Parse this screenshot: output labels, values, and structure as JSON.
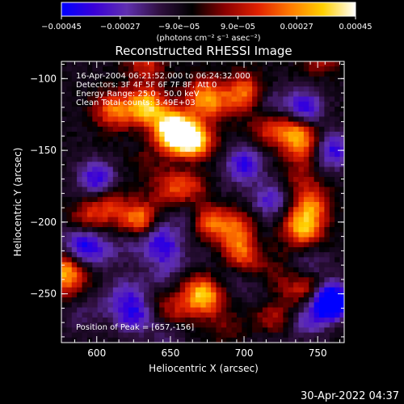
{
  "chart_data": {
    "type": "heatmap",
    "title": "Reconstructed RHESSI Image",
    "xlabel": "Heliocentric X (arcsec)",
    "ylabel": "Heliocentric Y (arcsec)",
    "xlim": [
      576,
      768
    ],
    "ylim": [
      -284,
      -88
    ],
    "x_ticks": [
      600,
      650,
      700,
      750
    ],
    "y_ticks": [
      -100,
      -150,
      -200,
      -250
    ],
    "x_tick_labels": [
      "600",
      "650",
      "700",
      "750"
    ],
    "y_tick_labels": [
      "−100",
      "−150",
      "−200",
      "−250"
    ],
    "grid": false,
    "colorbar": {
      "range": [
        -0.00045,
        0.00045
      ],
      "ticks": [
        -0.00045,
        -0.00027,
        -9e-05,
        9e-05,
        0.00027,
        0.00045
      ],
      "tick_labels": [
        "−0.00045",
        "−0.00027",
        "−9.0e−05",
        "9.0e−05",
        "0.00027",
        "0.00045"
      ],
      "units_label": "(photons cm⁻² s⁻¹ asec⁻²)",
      "colormap": [
        "#0000ff",
        "#3a00d8",
        "#6030b0",
        "#301040",
        "#000000",
        "#8a0000",
        "#e02000",
        "#ff7a00",
        "#ffd000",
        "#ffffff"
      ]
    },
    "annotations": {
      "time_range": "16-Apr-2004 06:21:52.000 to 06:24:32.000",
      "detectors": "Detectors: 3F 4F 5F 6F 7F 8F, Att 0",
      "energy": "Energy Range: 25.0 - 50.0 keV",
      "clean": "Clean     Total counts: 3.49E+03",
      "peak": "Position of Peak = [657,-156]"
    },
    "peak_position": [
      657,
      -156
    ],
    "hot_spots": [
      {
        "x": 666,
        "y": -145,
        "level": 0.00045
      },
      {
        "x": 652,
        "y": -135,
        "level": 0.0004
      },
      {
        "x": 632,
        "y": -120,
        "level": 0.00034
      },
      {
        "x": 611,
        "y": -122,
        "level": 0.0003
      },
      {
        "x": 700,
        "y": -110,
        "level": 0.00032
      },
      {
        "x": 717,
        "y": -133,
        "level": 0.00025
      },
      {
        "x": 740,
        "y": -204,
        "level": 0.0004
      },
      {
        "x": 746,
        "y": -188,
        "level": 0.00028
      },
      {
        "x": 678,
        "y": -200,
        "level": 0.00032
      },
      {
        "x": 663,
        "y": -172,
        "level": 0.00027
      },
      {
        "x": 580,
        "y": -232,
        "level": 0.00034
      },
      {
        "x": 628,
        "y": -200,
        "level": 0.00027
      },
      {
        "x": 670,
        "y": -250,
        "level": 0.00024
      },
      {
        "x": 720,
        "y": -268,
        "level": 0.00028
      },
      {
        "x": 700,
        "y": -225,
        "level": 0.0002
      }
    ],
    "cold_spots": [
      {
        "x": 700,
        "y": -160,
        "level": -0.0003
      },
      {
        "x": 740,
        "y": -122,
        "level": -0.00034
      },
      {
        "x": 760,
        "y": -150,
        "level": -0.0003
      },
      {
        "x": 600,
        "y": -170,
        "level": -0.0003
      },
      {
        "x": 592,
        "y": -215,
        "level": -0.00024
      },
      {
        "x": 625,
        "y": -265,
        "level": -0.00028
      },
      {
        "x": 718,
        "y": -185,
        "level": -0.00024
      },
      {
        "x": 760,
        "y": -255,
        "level": -0.0004
      },
      {
        "x": 600,
        "y": -255,
        "level": -0.00022
      },
      {
        "x": 648,
        "y": -225,
        "level": -0.0002
      }
    ]
  },
  "timestamp": "30-Apr-2022 04:37"
}
